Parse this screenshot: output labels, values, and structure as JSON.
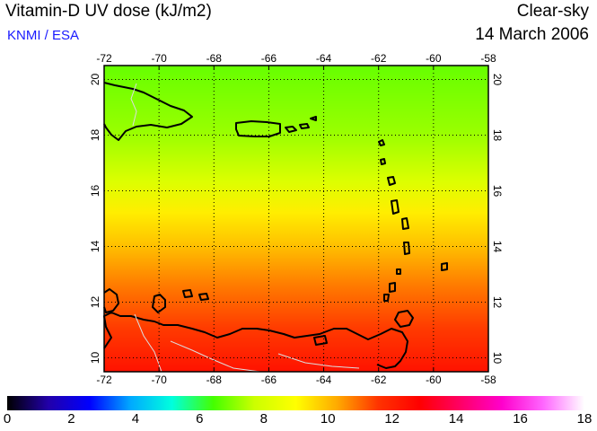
{
  "header": {
    "title": "Vitamin-D UV dose (kJ/m2)",
    "credit": "KNMI / ESA",
    "condition": "Clear-sky",
    "date": "14 March 2006"
  },
  "map": {
    "lon_range": [
      -72,
      -58
    ],
    "lat_range": [
      9.5,
      20.5
    ],
    "lon_ticks": [
      "-72",
      "-70",
      "-68",
      "-66",
      "-64",
      "-62",
      "-60",
      "-58"
    ],
    "lat_ticks": [
      "10",
      "12",
      "14",
      "16",
      "18",
      "20"
    ],
    "gridlines": "dotted",
    "dose_by_latitude": [
      {
        "lat": 20,
        "dose": 8.3
      },
      {
        "lat": 18,
        "dose": 8.8
      },
      {
        "lat": 16,
        "dose": 9.8
      },
      {
        "lat": 14,
        "dose": 11.0
      },
      {
        "lat": 12,
        "dose": 12.2
      },
      {
        "lat": 10,
        "dose": 13.2
      }
    ]
  },
  "colorbar": {
    "min": 0,
    "max": 18,
    "tick_labels": [
      "0",
      "2",
      "4",
      "6",
      "8",
      "10",
      "12",
      "14",
      "16",
      "18"
    ],
    "colors": [
      "#000000",
      "#2200aa",
      "#0000ff",
      "#00aaff",
      "#00ffdd",
      "#44ff00",
      "#ccff00",
      "#ffff00",
      "#ffaa00",
      "#ff3300",
      "#ff0000",
      "#ff0066",
      "#ff00cc",
      "#ff66ff",
      "#ffffff"
    ]
  }
}
